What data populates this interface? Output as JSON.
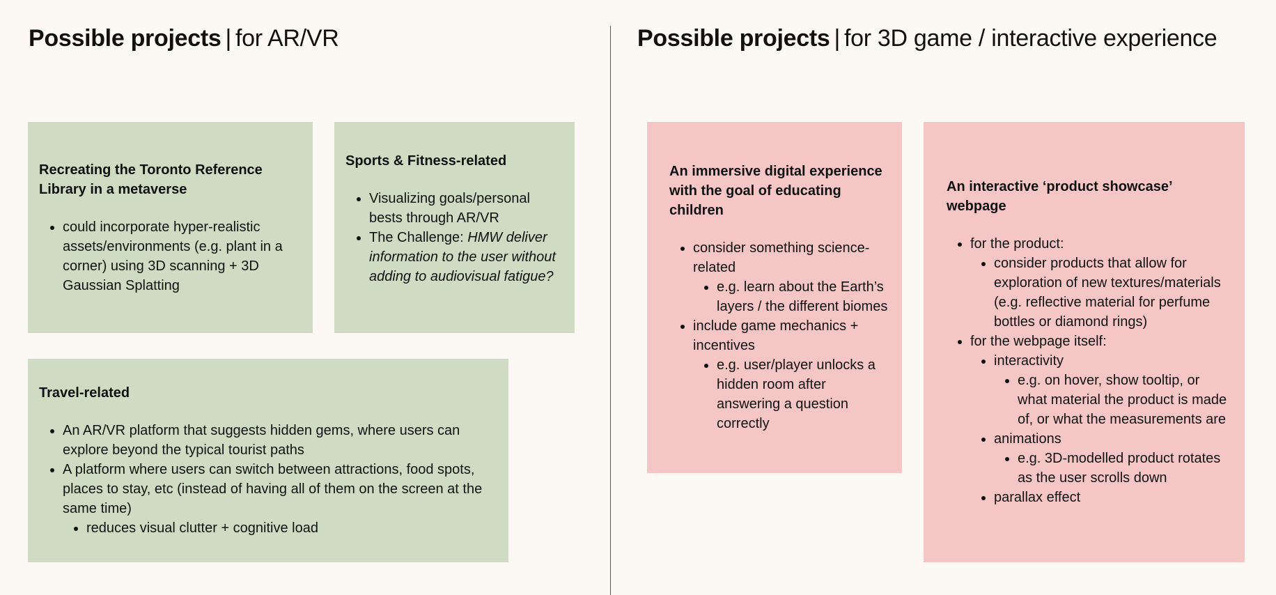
{
  "left": {
    "title_bold": "Possible projects",
    "separator": "|",
    "title_sub": "for AR/VR",
    "cards": [
      {
        "heading": "Recreating the Toronto Reference Library in a metaverse",
        "items": [
          "could incorporate hyper-realistic assets/environments (e.g. plant in a corner) using 3D scanning + 3D Gaussian Splatting"
        ]
      },
      {
        "heading": "Sports & Fitness-related",
        "items": [
          "Visualizing goals/personal bests through AR/VR"
        ],
        "challenge_prefix": "The Challenge: ",
        "challenge_italic": "HMW deliver information to the user without adding to audiovisual fatigue?"
      },
      {
        "heading": "Travel-related",
        "items": [
          "An AR/VR platform that suggests hidden gems, where users can explore beyond the typical tourist paths",
          "A platform where users can switch between attractions, food spots, places to stay, etc (instead of having all of them on the screen at the same time)"
        ],
        "subitems": [
          "reduces visual clutter + cognitive load"
        ]
      }
    ]
  },
  "right": {
    "title_bold": "Possible projects",
    "separator": "|",
    "title_sub": "for 3D game / interactive experience",
    "cards": [
      {
        "heading": "An immersive digital experience with the goal of educating children",
        "items": [
          {
            "text": "consider something science-related",
            "sub": [
              "e.g. learn about the Earth’s layers / the different biomes"
            ]
          },
          {
            "text": "include game mechanics + incentives",
            "sub": [
              "e.g. user/player unlocks a hidden room after answering a question correctly"
            ]
          }
        ]
      },
      {
        "heading": "An interactive ‘product showcase’ webpage",
        "items": [
          {
            "text": "for the product:",
            "sub": [
              "consider products that allow for exploration of new textures/materials (e.g. reflective material for perfume bottles or diamond rings)"
            ]
          },
          {
            "text": "for the webpage itself:",
            "sub": [
              {
                "text": "interactivity",
                "sub": [
                  "e.g. on hover, show tooltip, or what material the product is made of, or what the measurements are"
                ]
              },
              {
                "text": "animations",
                "sub": [
                  "e.g. 3D-modelled product rotates as the user scrolls down"
                ]
              },
              {
                "text": "parallax effect"
              }
            ]
          }
        ]
      }
    ]
  },
  "colors": {
    "background": "#fcf9f4",
    "green_card": "#cfdbc2",
    "pink_card": "#f5c6c6"
  }
}
